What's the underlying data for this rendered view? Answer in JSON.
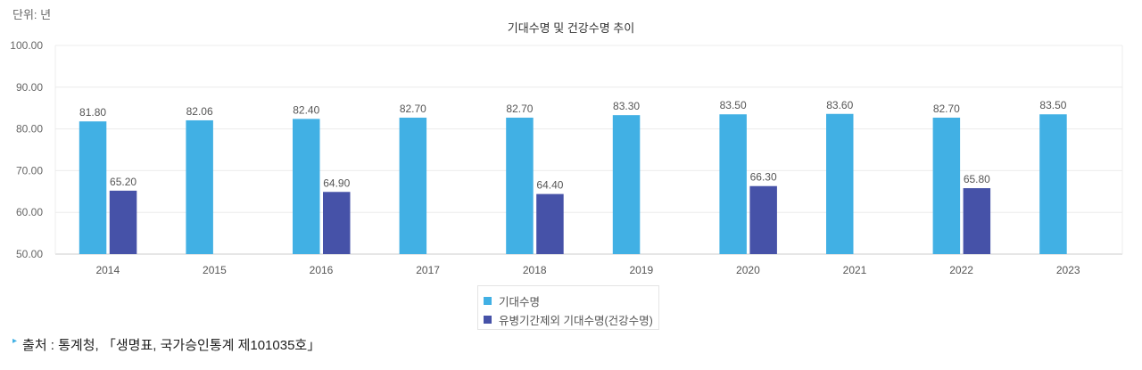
{
  "unit_label": "단위: 년",
  "source": "출처 : 통계청, 「생명표, 국가승인통계 제101035호」",
  "chart_data": {
    "type": "bar",
    "title": "기대수명 및 건강수명 추이",
    "categories": [
      "2014",
      "2015",
      "2016",
      "2017",
      "2018",
      "2019",
      "2020",
      "2021",
      "2022",
      "2023"
    ],
    "series": [
      {
        "name": "기대수명",
        "color": "#41b0e4",
        "values": [
          81.8,
          82.06,
          82.4,
          82.7,
          82.7,
          83.3,
          83.5,
          83.6,
          82.7,
          83.5
        ]
      },
      {
        "name": "유병기간제외 기대수명(건강수명)",
        "color": "#4652a8",
        "values": [
          65.2,
          null,
          64.9,
          null,
          64.4,
          null,
          66.3,
          null,
          65.8,
          null
        ]
      }
    ],
    "ylim": [
      50,
      100
    ],
    "yticks": [
      "50.00",
      "60.00",
      "70.00",
      "80.00",
      "90.00",
      "100.00"
    ],
    "grid": true,
    "legend": "bottom"
  }
}
